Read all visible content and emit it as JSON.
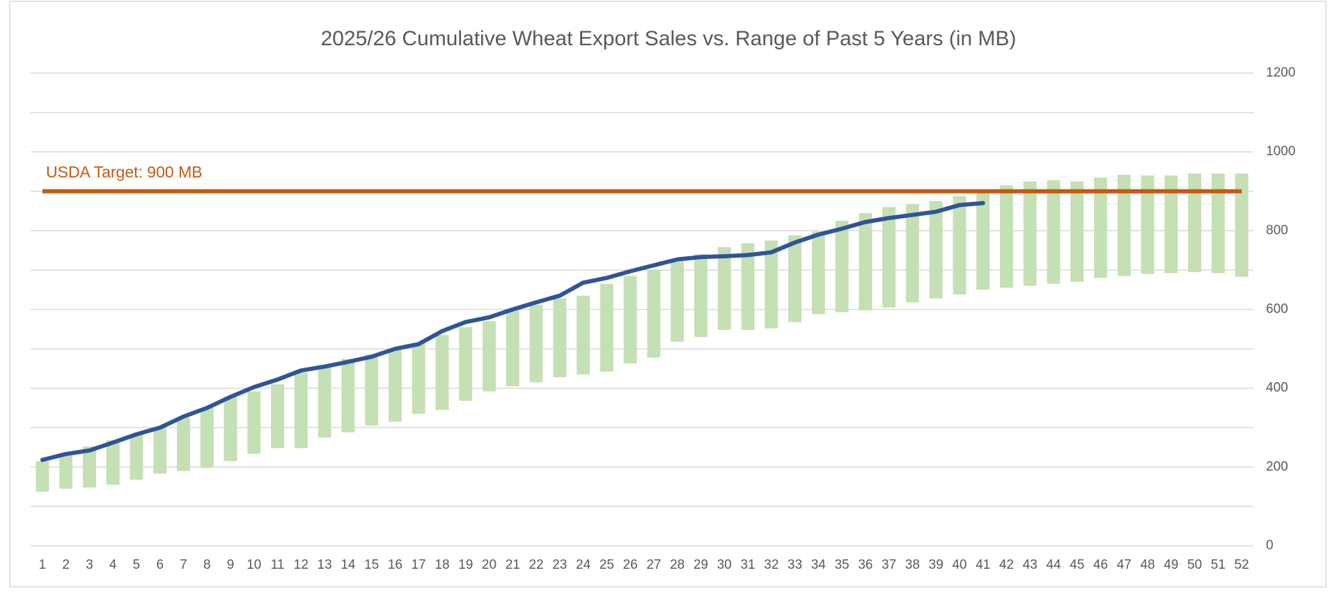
{
  "chart_data": {
    "type": "bar",
    "title": "2025/26 Cumulative Wheat Export Sales vs. Range of Past 5 Years (in MB)",
    "categories": [
      1,
      2,
      3,
      4,
      5,
      6,
      7,
      8,
      9,
      10,
      11,
      12,
      13,
      14,
      15,
      16,
      17,
      18,
      19,
      20,
      21,
      22,
      23,
      24,
      25,
      26,
      27,
      28,
      29,
      30,
      31,
      32,
      33,
      34,
      35,
      36,
      37,
      38,
      39,
      40,
      41,
      42,
      43,
      44,
      45,
      46,
      47,
      48,
      49,
      50,
      51,
      52
    ],
    "range_color": "#c5e0b4",
    "range_low": [
      137,
      145,
      148,
      155,
      168,
      183,
      190,
      198,
      215,
      233,
      248,
      248,
      275,
      288,
      305,
      315,
      335,
      345,
      368,
      392,
      405,
      415,
      428,
      435,
      442,
      463,
      478,
      518,
      530,
      548,
      548,
      552,
      568,
      588,
      593,
      598,
      605,
      618,
      628,
      638,
      650,
      655,
      660,
      665,
      670,
      680,
      685,
      690,
      692,
      695,
      692,
      683
    ],
    "range_high": [
      215,
      232,
      252,
      268,
      282,
      300,
      325,
      350,
      378,
      392,
      410,
      440,
      458,
      475,
      485,
      500,
      515,
      535,
      555,
      570,
      598,
      612,
      628,
      635,
      665,
      685,
      700,
      722,
      740,
      758,
      768,
      775,
      788,
      798,
      825,
      845,
      860,
      868,
      875,
      888,
      895,
      915,
      925,
      928,
      925,
      935,
      942,
      940,
      940,
      945,
      945,
      945
    ],
    "line_color": "#2f5597",
    "line_values": [
      218,
      233,
      242,
      262,
      283,
      300,
      328,
      350,
      378,
      403,
      422,
      445,
      455,
      467,
      480,
      500,
      512,
      545,
      568,
      580,
      600,
      618,
      635,
      668,
      680,
      697,
      712,
      727,
      733,
      735,
      738,
      745,
      770,
      790,
      805,
      822,
      832,
      840,
      848,
      865,
      870,
      null,
      null,
      null,
      null,
      null,
      null,
      null,
      null,
      null,
      null,
      null
    ],
    "target": {
      "value": 900,
      "label": "USDA Target: 900 MB",
      "color": "#c55a11"
    },
    "ylim": [
      0,
      1200
    ],
    "yticks": [
      0,
      200,
      400,
      600,
      800,
      1000,
      1200
    ],
    "minor_yticks": [
      100,
      300,
      500,
      700,
      900,
      1100
    ],
    "grid": true,
    "y_axis_side": "right"
  }
}
